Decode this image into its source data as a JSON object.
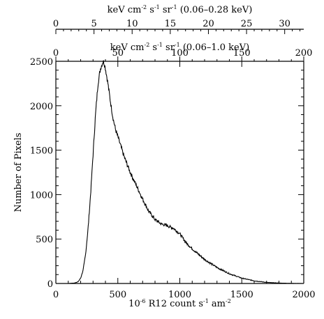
{
  "chart_data": {
    "type": "line",
    "x_axis_bottom": {
      "label_main": "10",
      "label_exp": "-6",
      "label_after": " R12 count s",
      "label_exp2": "-1",
      "label_after2": " am",
      "label_exp3": "-2",
      "range": [
        0,
        2000
      ],
      "ticks": [
        0,
        500,
        1000,
        1500,
        2000
      ],
      "tick_labels": [
        "0",
        "500",
        "1000",
        "1500",
        "2000"
      ]
    },
    "x_axis_top1": {
      "label_parts": [
        "keV cm",
        "-2",
        " s",
        "-1",
        " sr",
        "-1",
        " (0.06–1.0 keV)"
      ],
      "range": [
        0,
        200
      ],
      "ticks": [
        0,
        50,
        100,
        150,
        200
      ],
      "tick_labels": [
        "0",
        "50",
        "100",
        "150",
        "200"
      ]
    },
    "x_axis_top2": {
      "label_parts": [
        "keV cm",
        "-2",
        " s",
        "-1",
        " sr",
        "-1",
        " (0.06–0.28 keV)"
      ],
      "range": [
        0,
        32.5
      ],
      "ticks": [
        0,
        5,
        10,
        15,
        20,
        25,
        30
      ],
      "tick_labels": [
        "0",
        "5",
        "10",
        "15",
        "20",
        "25",
        "30"
      ]
    },
    "y_axis": {
      "label": "Number of Pixels",
      "range": [
        0,
        2500
      ],
      "ticks": [
        0,
        500,
        1000,
        1500,
        2000,
        2500
      ],
      "tick_labels": [
        "0",
        "500",
        "1000",
        "1500",
        "2000",
        "2500"
      ]
    },
    "series": [
      {
        "x": [
          0,
          100,
          150,
          180,
          200,
          220,
          240,
          260,
          280,
          300,
          320,
          340,
          360,
          380,
          390,
          400,
          420,
          440,
          460,
          480,
          500,
          550,
          600,
          650,
          700,
          750,
          800,
          850,
          900,
          950,
          1000,
          1050,
          1100,
          1150,
          1200,
          1300,
          1400,
          1500,
          1600,
          1700,
          1800,
          1900,
          2000
        ],
        "y": [
          0,
          0,
          5,
          20,
          60,
          150,
          330,
          620,
          1000,
          1450,
          1900,
          2250,
          2420,
          2500,
          2480,
          2420,
          2250,
          2050,
          1870,
          1740,
          1650,
          1430,
          1250,
          1100,
          950,
          810,
          720,
          670,
          650,
          620,
          560,
          460,
          390,
          330,
          270,
          180,
          110,
          60,
          30,
          12,
          5,
          1,
          0
        ]
      }
    ]
  }
}
